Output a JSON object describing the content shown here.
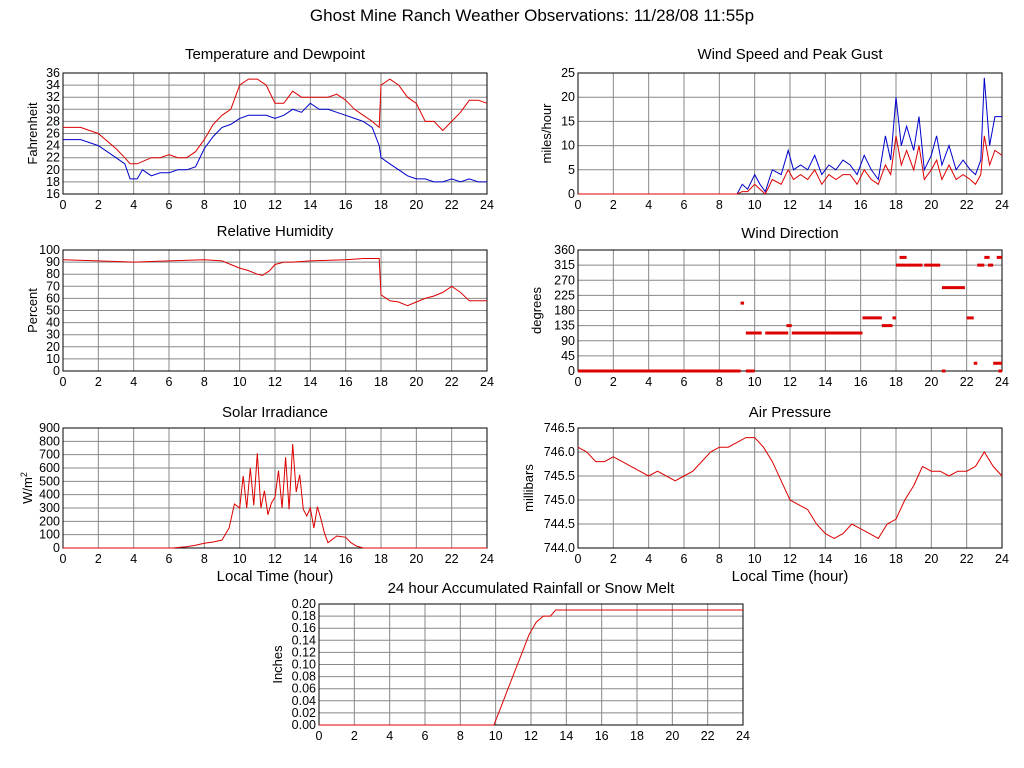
{
  "page_title": "Ghost Mine Ranch Weather Observations: 11/28/08 11:55p",
  "colors": {
    "primary": "#dd0000",
    "secondary": "#0000cc",
    "grid": "#888888"
  },
  "chart_data": [
    {
      "id": "temp",
      "type": "line",
      "title": "Temperature and Dewpoint",
      "xlabel": "",
      "ylabel": "Fahrenheit",
      "xlim": [
        0,
        24
      ],
      "ylim": [
        16,
        36
      ],
      "xticks": [
        0,
        2,
        4,
        6,
        8,
        10,
        12,
        14,
        16,
        18,
        20,
        22,
        24
      ],
      "yticks": [
        16,
        18,
        20,
        22,
        24,
        26,
        28,
        30,
        32,
        34,
        36
      ],
      "ytick_labels": [
        "16",
        "18",
        "20",
        "22",
        "24",
        "26",
        "28",
        "30",
        "32",
        "34",
        "36"
      ],
      "series": [
        {
          "name": "Temperature",
          "color": "#dd0000",
          "x": [
            0,
            1,
            1.5,
            2,
            3,
            3.5,
            3.8,
            4.2,
            5,
            5.5,
            6,
            6.5,
            7,
            7.5,
            8,
            8.5,
            9,
            9.5,
            10,
            10.5,
            11,
            11.5,
            12,
            12.5,
            13,
            13.5,
            14,
            14.5,
            15,
            15.5,
            16,
            16.5,
            17,
            17.5,
            17.9,
            18,
            18.5,
            19,
            19.5,
            20,
            20.5,
            21,
            21.5,
            22,
            22.5,
            23,
            23.5,
            24
          ],
          "values": [
            27,
            27,
            26.5,
            26,
            23.5,
            22,
            21,
            21,
            22,
            22,
            22.5,
            22,
            22,
            23,
            25,
            27.5,
            29,
            30,
            34,
            35,
            35,
            34,
            31,
            31,
            33,
            32,
            32,
            32,
            32,
            32.5,
            31.5,
            30,
            29,
            28,
            27,
            34,
            35,
            34,
            32,
            31,
            28,
            28,
            26.5,
            28,
            29.5,
            31.5,
            31.5,
            31
          ]
        },
        {
          "name": "Dewpoint",
          "color": "#0000cc",
          "x": [
            0,
            1,
            1.5,
            2,
            3,
            3.5,
            3.8,
            4.2,
            4.5,
            5,
            5.5,
            6,
            6.5,
            7,
            7.5,
            8,
            8.5,
            9,
            9.5,
            10,
            10.5,
            11,
            11.5,
            12,
            12.5,
            13,
            13.5,
            14,
            14.5,
            15,
            15.5,
            16,
            16.5,
            17,
            17.5,
            17.9,
            18,
            18.5,
            19,
            19.5,
            20,
            20.5,
            21,
            21.5,
            22,
            22.5,
            23,
            23.5,
            24
          ],
          "values": [
            25,
            25,
            24.5,
            24,
            22,
            21,
            18.5,
            18.5,
            20,
            19,
            19.5,
            19.5,
            20,
            20,
            20.5,
            23.5,
            25.5,
            27,
            27.5,
            28.5,
            29,
            29,
            29,
            28.5,
            29,
            30,
            29.5,
            31,
            30,
            30,
            29.5,
            29,
            28.5,
            28,
            27,
            24,
            22,
            21,
            20,
            19,
            18.5,
            18.5,
            18,
            18,
            18.5,
            18,
            18.5,
            18,
            18
          ]
        }
      ]
    },
    {
      "id": "wind",
      "type": "line",
      "title": "Wind Speed and Peak Gust",
      "xlabel": "",
      "ylabel": "miles/hour",
      "xlim": [
        0,
        24
      ],
      "ylim": [
        0,
        25
      ],
      "xticks": [
        0,
        2,
        4,
        6,
        8,
        10,
        12,
        14,
        16,
        18,
        20,
        22,
        24
      ],
      "yticks": [
        0,
        5,
        10,
        15,
        20,
        25
      ],
      "ytick_labels": [
        "0",
        "5",
        "10",
        "15",
        "20",
        "25"
      ],
      "series": [
        {
          "name": "Peak Gust",
          "color": "#0000cc",
          "x": [
            0,
            9,
            9.3,
            9.6,
            10,
            10.3,
            10.6,
            11,
            11.5,
            11.9,
            12.2,
            12.6,
            13,
            13.4,
            13.8,
            14.2,
            14.6,
            15,
            15.4,
            15.8,
            16.2,
            16.6,
            17,
            17.4,
            17.7,
            18,
            18.3,
            18.6,
            19,
            19.3,
            19.6,
            20,
            20.3,
            20.6,
            21,
            21.4,
            21.8,
            22.2,
            22.5,
            22.8,
            23,
            23.3,
            23.6,
            24
          ],
          "values": [
            0,
            0,
            2,
            1,
            4,
            2,
            0.5,
            5,
            4,
            9,
            5,
            6,
            5,
            8,
            4,
            6,
            5,
            7,
            6,
            4,
            8,
            5,
            3,
            12,
            7,
            20,
            10,
            14,
            9,
            16,
            5,
            8,
            12,
            6,
            10,
            5,
            7,
            5,
            4,
            7,
            24,
            10,
            16,
            16
          ]
        },
        {
          "name": "Wind Speed",
          "color": "#dd0000",
          "x": [
            0,
            9,
            9.3,
            9.6,
            10,
            10.3,
            10.6,
            11,
            11.5,
            11.9,
            12.2,
            12.6,
            13,
            13.4,
            13.8,
            14.2,
            14.6,
            15,
            15.4,
            15.8,
            16.2,
            16.6,
            17,
            17.4,
            17.7,
            18,
            18.3,
            18.6,
            19,
            19.3,
            19.6,
            20,
            20.3,
            20.6,
            21,
            21.4,
            21.8,
            22.2,
            22.5,
            22.8,
            23,
            23.3,
            23.6,
            24
          ],
          "values": [
            0,
            0,
            0.5,
            0.5,
            2,
            1,
            0,
            3,
            2,
            5,
            3,
            4,
            3,
            5,
            2,
            4,
            3,
            4,
            4,
            2,
            5,
            3,
            2,
            6,
            4,
            12,
            6,
            9,
            5,
            10,
            3,
            5,
            7,
            3,
            6,
            3,
            4,
            3,
            2,
            4,
            12,
            6,
            9,
            8
          ]
        }
      ]
    },
    {
      "id": "humidity",
      "type": "line",
      "title": "Relative Humidity",
      "xlabel": "",
      "ylabel": "Percent",
      "xlim": [
        0,
        24
      ],
      "ylim": [
        0,
        100
      ],
      "xticks": [
        0,
        2,
        4,
        6,
        8,
        10,
        12,
        14,
        16,
        18,
        20,
        22,
        24
      ],
      "yticks": [
        0,
        10,
        20,
        30,
        40,
        50,
        60,
        70,
        80,
        90,
        100
      ],
      "ytick_labels": [
        "0",
        "10",
        "20",
        "30",
        "40",
        "50",
        "60",
        "70",
        "80",
        "90",
        "100"
      ],
      "series": [
        {
          "name": "Relative Humidity",
          "color": "#dd0000",
          "x": [
            0,
            2,
            4,
            6,
            8,
            9,
            9.5,
            10,
            10.5,
            11,
            11.3,
            11.7,
            12,
            12.5,
            13,
            14,
            16,
            17,
            17.9,
            18,
            18.5,
            19,
            19.5,
            20,
            20.5,
            21,
            21.5,
            22,
            22.5,
            23,
            23.5,
            24
          ],
          "values": [
            92,
            91,
            90,
            91,
            92,
            91,
            88,
            85,
            83,
            80,
            79,
            83,
            88,
            90,
            90,
            91,
            92,
            93,
            93,
            63,
            58,
            57,
            54,
            57,
            60,
            62,
            65,
            70,
            65,
            58,
            58,
            58
          ]
        }
      ]
    },
    {
      "id": "direction",
      "type": "scatter",
      "title": "Wind Direction",
      "xlabel": "",
      "ylabel": "degrees",
      "xlim": [
        0,
        24
      ],
      "ylim": [
        0,
        360
      ],
      "xticks": [
        0,
        2,
        4,
        6,
        8,
        10,
        12,
        14,
        16,
        18,
        20,
        22,
        24
      ],
      "yticks": [
        0,
        45,
        90,
        135,
        180,
        225,
        270,
        315,
        360
      ],
      "ytick_labels": [
        "0",
        "45",
        "90",
        "135",
        "180",
        "225",
        "270",
        "315",
        "360"
      ],
      "series": [
        {
          "name": "Wind Direction",
          "color": "#dd0000",
          "segments": [
            [
              0,
              9.2,
              0
            ],
            [
              9.2,
              9.4,
              202
            ],
            [
              9.5,
              10.4,
              113
            ],
            [
              10.6,
              11.9,
              113
            ],
            [
              11.8,
              12.1,
              135
            ],
            [
              12.1,
              16.1,
              113
            ],
            [
              16.1,
              17.2,
              158
            ],
            [
              17.2,
              17.8,
              135
            ],
            [
              17.8,
              18.0,
              158
            ],
            [
              18.0,
              18.6,
              315
            ],
            [
              18.2,
              18.6,
              338
            ],
            [
              18.6,
              19.5,
              315
            ],
            [
              19.6,
              20.5,
              315
            ],
            [
              20.6,
              21.9,
              248
            ],
            [
              22.0,
              22.4,
              158
            ],
            [
              22.6,
              23.0,
              315
            ],
            [
              23.0,
              23.3,
              338
            ],
            [
              23.2,
              23.5,
              315
            ],
            [
              23.7,
              24.0,
              338
            ],
            [
              23.5,
              24.0,
              23
            ],
            [
              23.8,
              24.0,
              0
            ],
            [
              22.4,
              22.6,
              23
            ],
            [
              20.6,
              20.8,
              0
            ],
            [
              9.5,
              10.0,
              0
            ]
          ]
        }
      ]
    },
    {
      "id": "solar",
      "type": "line",
      "title": "Solar Irradiance",
      "xlabel": "Local Time (hour)",
      "ylabel": "W/m",
      "ylabel_sup": "2",
      "xlim": [
        0,
        24
      ],
      "ylim": [
        0,
        900
      ],
      "xticks": [
        0,
        2,
        4,
        6,
        8,
        10,
        12,
        14,
        16,
        18,
        20,
        22,
        24
      ],
      "yticks": [
        0,
        100,
        200,
        300,
        400,
        500,
        600,
        700,
        800,
        900
      ],
      "ytick_labels": [
        "0",
        "100",
        "200",
        "300",
        "400",
        "500",
        "600",
        "700",
        "800",
        "900"
      ],
      "series": [
        {
          "name": "Solar Irradiance",
          "color": "#dd0000",
          "x": [
            0,
            6.2,
            7,
            7.5,
            8,
            8.5,
            9,
            9.4,
            9.7,
            10,
            10.2,
            10.4,
            10.6,
            10.8,
            11,
            11.2,
            11.4,
            11.6,
            11.8,
            12,
            12.2,
            12.4,
            12.6,
            12.8,
            13,
            13.2,
            13.4,
            13.6,
            13.8,
            14,
            14.2,
            14.4,
            14.6,
            14.8,
            15,
            15.5,
            16,
            16.3,
            16.6,
            17,
            24
          ],
          "values": [
            0,
            0,
            10,
            20,
            35,
            45,
            60,
            150,
            330,
            300,
            540,
            300,
            600,
            320,
            710,
            300,
            430,
            250,
            340,
            380,
            580,
            300,
            680,
            290,
            780,
            420,
            550,
            290,
            240,
            300,
            150,
            310,
            220,
            110,
            40,
            90,
            80,
            40,
            15,
            0,
            0
          ]
        }
      ]
    },
    {
      "id": "pressure",
      "type": "line",
      "title": "Air Pressure",
      "xlabel": "Local Time (hour)",
      "ylabel": "millibars",
      "xlim": [
        0,
        24
      ],
      "ylim": [
        744.0,
        746.5
      ],
      "xticks": [
        0,
        2,
        4,
        6,
        8,
        10,
        12,
        14,
        16,
        18,
        20,
        22,
        24
      ],
      "yticks": [
        744.0,
        744.5,
        745.0,
        745.5,
        746.0,
        746.5
      ],
      "ytick_labels": [
        "744.0",
        "744.5",
        "745.0",
        "745.5",
        "746.0",
        "746.5"
      ],
      "series": [
        {
          "name": "Air Pressure",
          "color": "#dd0000",
          "x": [
            0,
            0.5,
            1,
            1.5,
            2,
            2.5,
            3,
            3.5,
            4,
            4.5,
            5,
            5.5,
            6,
            6.5,
            7,
            7.5,
            8,
            8.5,
            9,
            9.5,
            10,
            10.5,
            11,
            11.5,
            12,
            12.5,
            13,
            13.5,
            14,
            14.5,
            15,
            15.5,
            16,
            16.5,
            17,
            17.5,
            18,
            18.5,
            19,
            19.5,
            20,
            20.5,
            21,
            21.5,
            22,
            22.5,
            23,
            23.5,
            24
          ],
          "values": [
            746.1,
            746.0,
            745.8,
            745.8,
            745.9,
            745.8,
            745.7,
            745.6,
            745.5,
            745.6,
            745.5,
            745.4,
            745.5,
            745.6,
            745.8,
            746.0,
            746.1,
            746.1,
            746.2,
            746.3,
            746.3,
            746.1,
            745.8,
            745.4,
            745.0,
            744.9,
            744.8,
            744.5,
            744.3,
            744.2,
            744.3,
            744.5,
            744.4,
            744.3,
            744.2,
            744.5,
            744.6,
            745.0,
            745.3,
            745.7,
            745.6,
            745.6,
            745.5,
            745.6,
            745.6,
            745.7,
            746.0,
            745.7,
            745.5
          ]
        }
      ]
    },
    {
      "id": "rain",
      "type": "line",
      "title": "24 hour Accumulated Rainfall or Snow Melt",
      "xlabel": "",
      "ylabel": "Inches",
      "xlim": [
        0,
        24
      ],
      "ylim": [
        0,
        0.2
      ],
      "xticks": [
        0,
        2,
        4,
        6,
        8,
        10,
        12,
        14,
        16,
        18,
        20,
        22,
        24
      ],
      "yticks": [
        0,
        0.02,
        0.04,
        0.06,
        0.08,
        0.1,
        0.12,
        0.14,
        0.16,
        0.18,
        0.2
      ],
      "ytick_labels": [
        "0.00",
        "0.02",
        "0.04",
        "0.06",
        "0.08",
        "0.10",
        "0.12",
        "0.14",
        "0.16",
        "0.18",
        "0.20"
      ],
      "series": [
        {
          "name": "Accumulated Rainfall",
          "color": "#dd0000",
          "x": [
            0,
            9.9,
            10.3,
            10.7,
            11.1,
            11.5,
            11.9,
            12.3,
            12.7,
            13.1,
            13.4,
            24
          ],
          "values": [
            0,
            0,
            0.03,
            0.06,
            0.09,
            0.12,
            0.15,
            0.17,
            0.18,
            0.18,
            0.19,
            0.19
          ]
        }
      ]
    }
  ]
}
